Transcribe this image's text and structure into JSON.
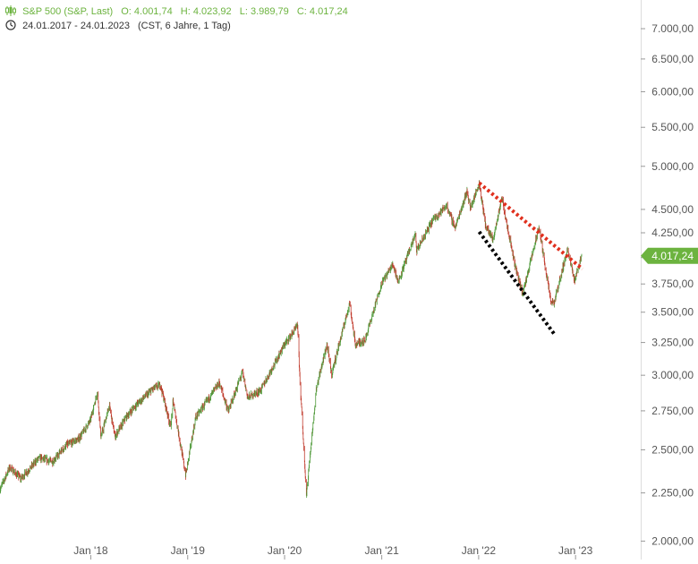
{
  "header": {
    "instrument": "S&P 500 (S&P, Last)",
    "open": "O: 4.001,74",
    "high": "H: 4.023,92",
    "low": "L: 3.989,79",
    "close": "C: 4.017,24",
    "range": "24.01.2017 - 24.01.2023",
    "range_note": "(CST, 6 Jahre, 1 Tag)",
    "icons": [
      "candlestick-icon",
      "clock-icon"
    ]
  },
  "colors": {
    "up": "#4f9a3a",
    "down": "#c0392b",
    "accent": "#6cb33f",
    "resistance_line": "#e0301e",
    "support_line": "#000000"
  },
  "chart_data": {
    "type": "candlestick",
    "y_scale": "log",
    "ylim": [
      1980,
      7250
    ],
    "y_ticks": [
      "7.000,00",
      "6.500,00",
      "6.000,00",
      "5.500,00",
      "5.000,00",
      "4.500,00",
      "4.250,00",
      "4.000,00",
      "3.750,00",
      "3.500,00",
      "3.250,00",
      "3.000,00",
      "2.750,00",
      "2.500,00",
      "2.250,00",
      "2.000,00"
    ],
    "y_tick_values": [
      7000,
      6500,
      6000,
      5500,
      5000,
      4500,
      4250,
      4000,
      3750,
      3500,
      3250,
      3000,
      2750,
      2500,
      2250,
      2000
    ],
    "xlim": [
      "2017-01-24",
      "2023-01-24"
    ],
    "x_ticks": [
      "Jan '18",
      "Jan '19",
      "Jan '20",
      "Jan '21",
      "Jan '22",
      "Jan '23"
    ],
    "x_tick_dates": [
      "2018-01-01",
      "2019-01-01",
      "2020-01-01",
      "2021-01-01",
      "2022-01-01",
      "2023-01-01"
    ],
    "last_price": "4.017,24",
    "last_price_value": 4017.24,
    "series": [
      {
        "values": [
          [
            "2017-01-24",
            2270
          ],
          [
            "2017-03-01",
            2395
          ],
          [
            "2017-04-13",
            2330
          ],
          [
            "2017-06-19",
            2450
          ],
          [
            "2017-08-10",
            2430
          ],
          [
            "2017-10-02",
            2530
          ],
          [
            "2017-11-15",
            2565
          ],
          [
            "2017-12-29",
            2680
          ],
          [
            "2018-01-26",
            2875
          ],
          [
            "2018-02-08",
            2580
          ],
          [
            "2018-03-12",
            2785
          ],
          [
            "2018-04-02",
            2580
          ],
          [
            "2018-05-15",
            2710
          ],
          [
            "2018-06-15",
            2780
          ],
          [
            "2018-08-29",
            2910
          ],
          [
            "2018-09-20",
            2930
          ],
          [
            "2018-10-29",
            2640
          ],
          [
            "2018-11-07",
            2815
          ],
          [
            "2018-12-24",
            2350
          ],
          [
            "2019-01-31",
            2705
          ],
          [
            "2019-04-30",
            2945
          ],
          [
            "2019-06-03",
            2745
          ],
          [
            "2019-07-26",
            3025
          ],
          [
            "2019-08-15",
            2840
          ],
          [
            "2019-10-02",
            2890
          ],
          [
            "2019-12-31",
            3230
          ],
          [
            "2020-02-19",
            3385
          ],
          [
            "2020-02-28",
            2955
          ],
          [
            "2020-03-23",
            2240
          ],
          [
            "2020-04-30",
            2910
          ],
          [
            "2020-06-08",
            3230
          ],
          [
            "2020-06-26",
            3010
          ],
          [
            "2020-09-02",
            3580
          ],
          [
            "2020-09-23",
            3235
          ],
          [
            "2020-10-30",
            3270
          ],
          [
            "2020-12-31",
            3755
          ],
          [
            "2021-02-12",
            3935
          ],
          [
            "2021-03-04",
            3770
          ],
          [
            "2021-05-07",
            4230
          ],
          [
            "2021-05-12",
            4065
          ],
          [
            "2021-07-12",
            4385
          ],
          [
            "2021-09-02",
            4540
          ],
          [
            "2021-10-04",
            4300
          ],
          [
            "2021-11-18",
            4705
          ],
          [
            "2021-12-01",
            4510
          ],
          [
            "2022-01-03",
            4795
          ],
          [
            "2022-01-27",
            4330
          ],
          [
            "2022-02-24",
            4170
          ],
          [
            "2022-03-29",
            4630
          ],
          [
            "2022-05-20",
            3900
          ],
          [
            "2022-06-16",
            3665
          ],
          [
            "2022-08-16",
            4305
          ],
          [
            "2022-09-30",
            3585
          ],
          [
            "2022-10-12",
            3577
          ],
          [
            "2022-12-01",
            4080
          ],
          [
            "2022-12-28",
            3785
          ],
          [
            "2023-01-24",
            4017
          ]
        ]
      }
    ],
    "trendlines": [
      {
        "name": "resistance",
        "from": [
          "2022-01-03",
          4800
        ],
        "to": [
          "2023-01-27",
          3890
        ]
      },
      {
        "name": "support",
        "from": [
          "2022-01-03",
          4260
        ],
        "to": [
          "2022-10-12",
          3320
        ]
      }
    ],
    "grid": false,
    "legend": "none"
  }
}
